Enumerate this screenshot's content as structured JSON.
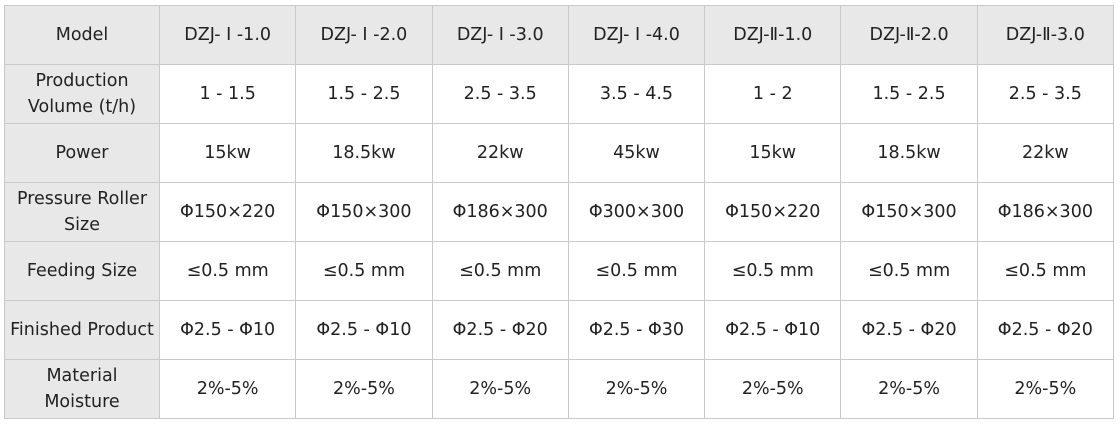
{
  "header": {
    "label": "Model",
    "models": [
      "DZJ- Ⅰ -1.0",
      "DZJ- Ⅰ -2.0",
      "DZJ- Ⅰ -3.0",
      "DZJ- Ⅰ -4.0",
      "DZJ-Ⅱ-1.0",
      "DZJ-Ⅱ-2.0",
      "DZJ-Ⅱ-3.0"
    ]
  },
  "rows": [
    {
      "label": "Production Volume (t/h)",
      "values": [
        "1 - 1.5",
        "1.5 - 2.5",
        "2.5 - 3.5",
        "3.5 - 4.5",
        "1 - 2",
        "1.5 - 2.5",
        "2.5 - 3.5"
      ]
    },
    {
      "label": "Power",
      "values": [
        "15kw",
        "18.5kw",
        "22kw",
        "45kw",
        "15kw",
        "18.5kw",
        "22kw"
      ]
    },
    {
      "label": "Pressure Roller Size",
      "values": [
        "Φ150×220",
        "Φ150×300",
        "Φ186×300",
        "Φ300×300",
        "Φ150×220",
        "Φ150×300",
        "Φ186×300"
      ]
    },
    {
      "label": "Feeding Size",
      "values": [
        "≤0.5 mm",
        "≤0.5 mm",
        "≤0.5 mm",
        "≤0.5 mm",
        "≤0.5 mm",
        "≤0.5 mm",
        "≤0.5 mm"
      ]
    },
    {
      "label": "Finished Product",
      "values": [
        "Φ2.5 - Φ10",
        "Φ2.5 - Φ10",
        "Φ2.5 - Φ20",
        "Φ2.5 - Φ30",
        "Φ2.5 - Φ10",
        "Φ2.5 - Φ20",
        "Φ2.5 - Φ20"
      ]
    },
    {
      "label": "Material Moisture",
      "values": [
        "2%-5%",
        "2%-5%",
        "2%-5%",
        "2%-5%",
        "2%-5%",
        "2%-5%",
        "2%-5%"
      ]
    }
  ]
}
